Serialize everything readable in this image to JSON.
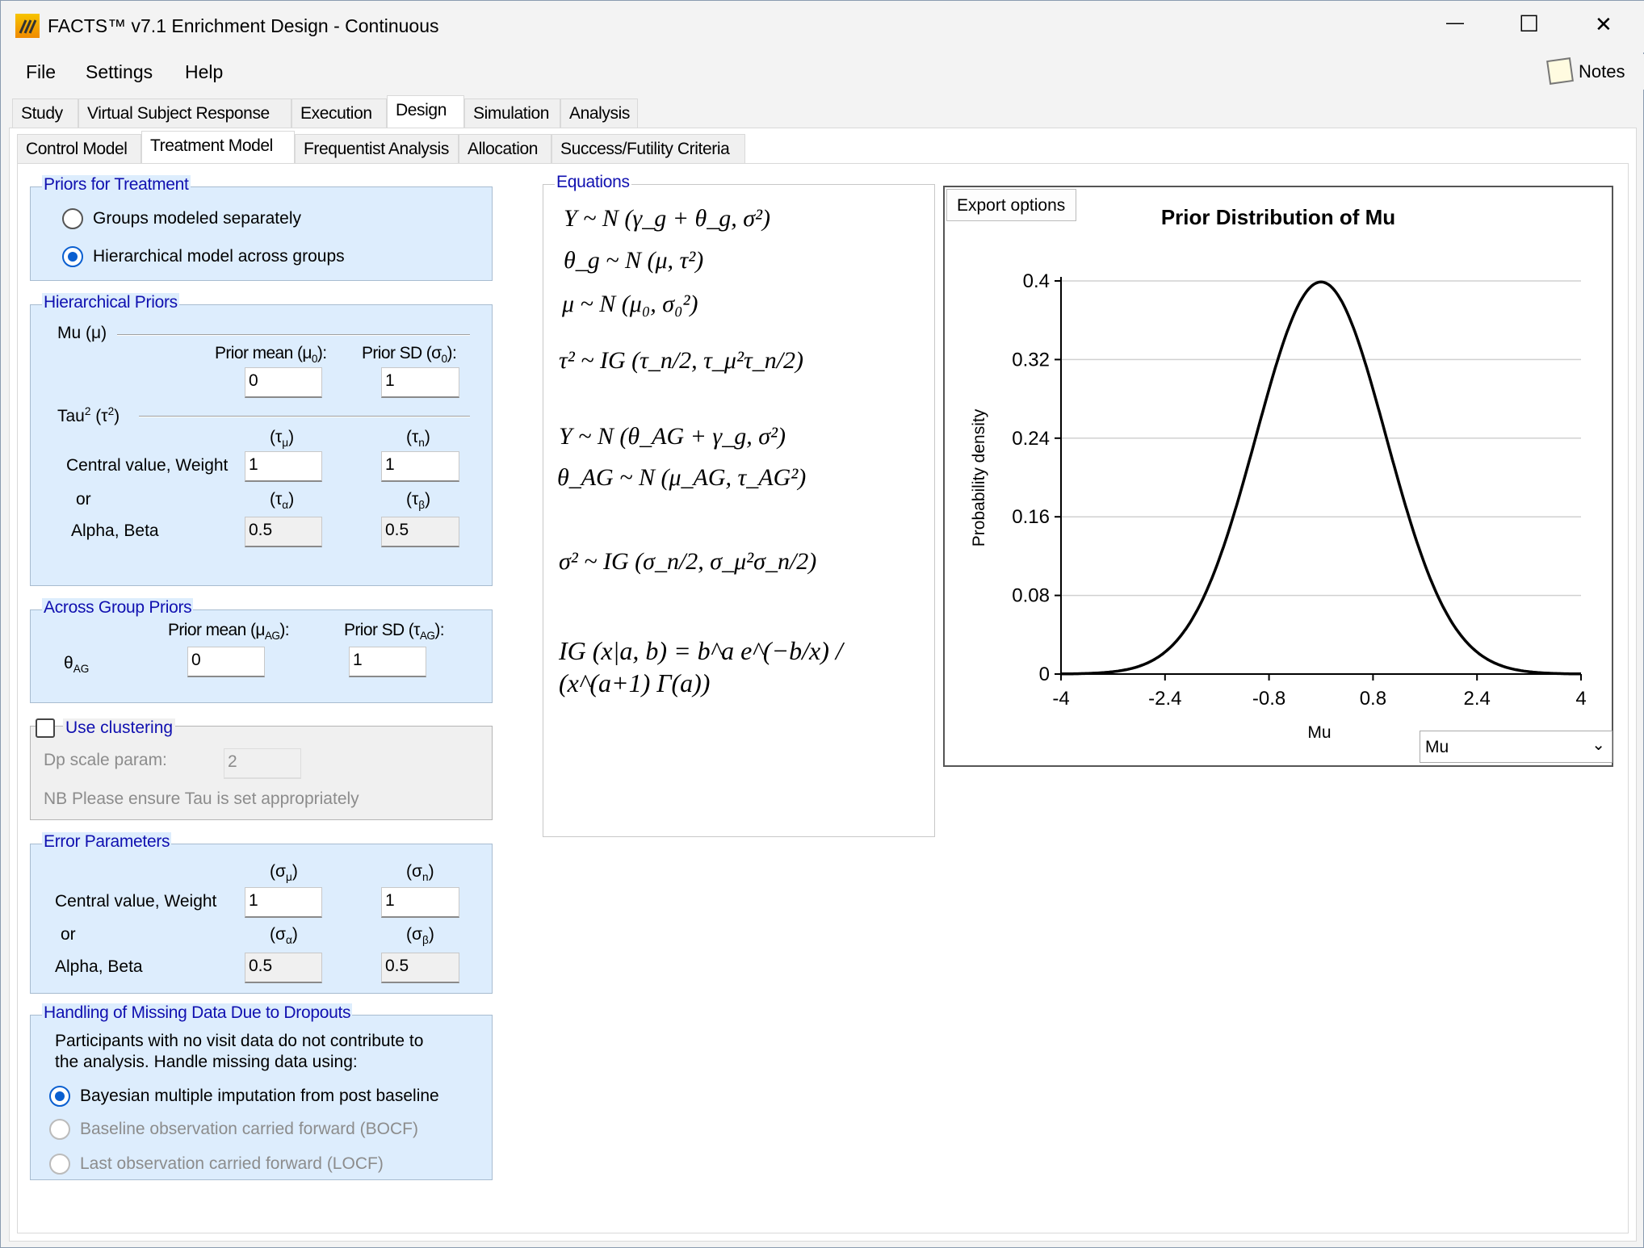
{
  "window": {
    "title": "FACTS™ v7.1 Enrichment Design - Continuous",
    "minimize": "—",
    "maximize": "☐",
    "close": "✕"
  },
  "menu": {
    "items": [
      "File",
      "Settings",
      "Help"
    ],
    "notes": "Notes"
  },
  "tabs": {
    "main": [
      "Study",
      "Virtual Subject Response",
      "Execution",
      "Design",
      "Simulation",
      "Analysis"
    ],
    "main_selected": "Design",
    "sub": [
      "Control Model",
      "Treatment Model",
      "Frequentist Analysis",
      "Allocation",
      "Success/Futility Criteria"
    ],
    "sub_selected": "Treatment Model"
  },
  "priors_treatment": {
    "legend": "Priors for Treatment",
    "options": [
      "Groups modeled separately",
      "Hierarchical model across groups"
    ],
    "selected": "Hierarchical model across groups"
  },
  "hier": {
    "legend": "Hierarchical Priors",
    "mu_label": "Mu (μ)",
    "prior_mean_label": "Prior mean (μ",
    "prior_mean_sub": "0",
    "prior_sd_label": "Prior SD (σ",
    "prior_sd_sub": "0",
    "prior_mean": "0",
    "prior_sd": "1",
    "tau_label": "Tau",
    "tau_sup": "2",
    "tau_label2": " (τ",
    "tau_sup2": "2",
    "tau_close": ")",
    "tau_mu": "(τ",
    "tau_mu_sub": "μ",
    "tau_n_sub": "n",
    "tau_a_sub": "α",
    "tau_b_sub": "β",
    "close": ")",
    "central_label": "Central value, Weight",
    "or_label": "or",
    "ab_label": "Alpha, Beta",
    "central_mu": "1",
    "weight_n": "1",
    "alpha": "0.5",
    "beta": "0.5"
  },
  "across": {
    "legend": "Across Group Priors",
    "prior_mean_label": "Prior mean (μ",
    "prior_sd_label": "Prior SD (τ",
    "sub": "AG",
    "theta": "θ",
    "prior_mean": "0",
    "prior_sd": "1"
  },
  "clustering": {
    "label": "Use clustering",
    "checked": false,
    "dp_label": "Dp scale param:",
    "dp_value": "2",
    "note": "NB Please ensure Tau is set appropriately"
  },
  "error": {
    "legend": "Error Parameters",
    "sig": "(σ",
    "mu_sub": "μ",
    "n_sub": "n",
    "a_sub": "α",
    "b_sub": "β",
    "close": ")",
    "central_label": "Central value, Weight",
    "or_label": "or",
    "ab_label": "Alpha, Beta",
    "central": "1",
    "weight": "1",
    "alpha": "0.5",
    "beta": "0.5"
  },
  "missing": {
    "legend": "Handling of Missing Data Due to Dropouts",
    "desc1": "Participants with no visit data do not contribute to",
    "desc2": "the analysis. Handle missing data using:",
    "options": [
      "Bayesian multiple imputation from post baseline",
      "Baseline observation carried forward (BOCF)",
      "Last observation carried forward (LOCF)"
    ],
    "selected": "Bayesian multiple imputation from post baseline"
  },
  "equations": {
    "legend": "Equations",
    "e1": "Y ~ N (γ_g + θ_g, σ²)",
    "e2": "θ_g ~ N (μ, τ²)",
    "e3": "μ ~ N (μ₀, σ₀²)",
    "e4": "τ² ~ IG (τ_n/2, τ_μ²τ_n/2)",
    "e5": "Y ~ N (θ_AG + γ_g, σ²)",
    "e6": "θ_AG ~ N (μ_AG, τ_AG²)",
    "e7": "σ² ~ IG (σ_n/2, σ_μ²σ_n/2)",
    "e8": "IG (x|a, b) = b^a e^(−b/x) / (x^(a+1) Γ(a))"
  },
  "chart": {
    "export_label": "Export options",
    "selector_value": "Mu"
  },
  "chart_data": {
    "type": "line",
    "title": "Prior Distribution of Mu",
    "xlabel": "Mu",
    "ylabel": "Probability density",
    "xlim": [
      -4,
      4
    ],
    "ylim": [
      0,
      0.4
    ],
    "xticks": [
      "-4",
      "-2.4",
      "-0.8",
      "0.8",
      "2.4",
      "4"
    ],
    "yticks": [
      "0",
      "0.08",
      "0.16",
      "0.24",
      "0.32",
      "0.4"
    ],
    "grid": "horizontal",
    "series": [
      {
        "distribution": "Normal",
        "mean": 0,
        "sd": 1,
        "color": "#000000"
      }
    ]
  },
  "colors": {
    "accent": "#0a5fd0",
    "legend_text": "#1010b0",
    "group_bg": "#ddedfd"
  }
}
